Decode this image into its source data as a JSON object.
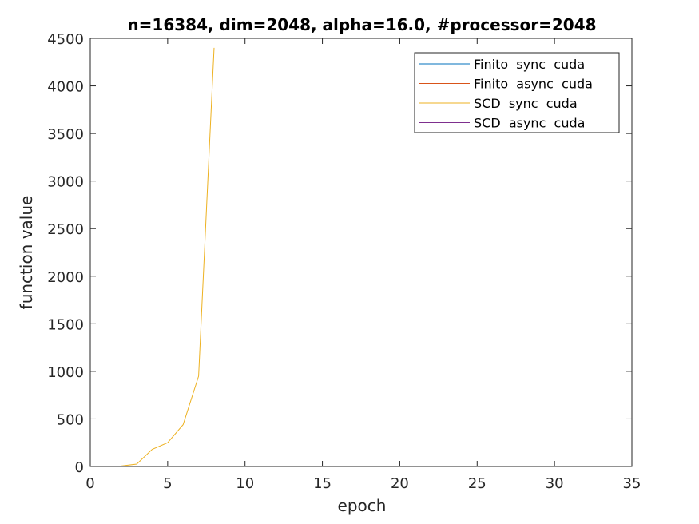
{
  "chart_data": {
    "type": "line",
    "title": "n=16384, dim=2048, alpha=16.0, #processor=2048",
    "xlabel": "epoch",
    "ylabel": "function value",
    "xlim": [
      0,
      35
    ],
    "ylim": [
      0,
      4500
    ],
    "xticks": [
      0,
      5,
      10,
      15,
      20,
      25,
      30,
      35
    ],
    "yticks": [
      0,
      500,
      1000,
      1500,
      2000,
      2500,
      3000,
      3500,
      4000,
      4500
    ],
    "grid": false,
    "legend_position": "top-right",
    "series": [
      {
        "name": "Finito  sync  cuda",
        "color": "#0072BD",
        "x": [
          1,
          2,
          3,
          4,
          5,
          6,
          7,
          8,
          9,
          10,
          11,
          12,
          13,
          14,
          15,
          16,
          17,
          18,
          19,
          20,
          21,
          22,
          23,
          24,
          25,
          26,
          27,
          28,
          29,
          30,
          31,
          32
        ],
        "y": [
          0,
          0,
          0,
          0,
          0,
          0,
          0,
          0,
          0,
          0,
          0,
          0,
          0,
          0,
          0,
          0,
          0,
          0,
          0,
          0,
          0,
          0,
          0,
          0,
          0,
          0,
          0,
          0,
          0,
          0,
          0,
          0
        ]
      },
      {
        "name": "Finito  async  cuda",
        "color": "#D95319",
        "x": [
          1,
          2,
          3,
          4,
          5,
          6,
          7,
          8,
          9,
          10,
          11,
          12,
          13,
          14,
          15,
          16,
          17,
          18,
          19,
          20,
          21,
          22,
          23,
          24,
          25,
          26,
          27,
          28,
          29,
          30,
          31,
          32
        ],
        "y": [
          0,
          0,
          0,
          0,
          0,
          0,
          0,
          0,
          3,
          3,
          0,
          0,
          2,
          2,
          0,
          0,
          0,
          0,
          0,
          0,
          0,
          0,
          2,
          2,
          0,
          0,
          0,
          0,
          0,
          0,
          0,
          0
        ]
      },
      {
        "name": "SCD  sync  cuda",
        "color": "#EDB120",
        "x": [
          1,
          2,
          3,
          4,
          5,
          6,
          7,
          8
        ],
        "y": [
          0,
          5,
          25,
          180,
          250,
          440,
          950,
          4400
        ]
      },
      {
        "name": "SCD  async  cuda",
        "color": "#7E2F8E",
        "x": [
          1,
          2,
          3,
          4,
          5,
          6,
          7,
          8,
          9,
          10,
          11,
          12,
          13,
          14,
          15,
          16,
          17,
          18,
          19,
          20,
          21,
          22,
          23,
          24,
          25,
          26,
          27,
          28,
          29,
          30,
          31,
          32
        ],
        "y": [
          0,
          0,
          0,
          0,
          0,
          0,
          0,
          0,
          0,
          0,
          0,
          0,
          0,
          0,
          0,
          0,
          0,
          0,
          0,
          0,
          0,
          0,
          0,
          0,
          0,
          0,
          0,
          0,
          0,
          0,
          0,
          0
        ]
      }
    ]
  }
}
